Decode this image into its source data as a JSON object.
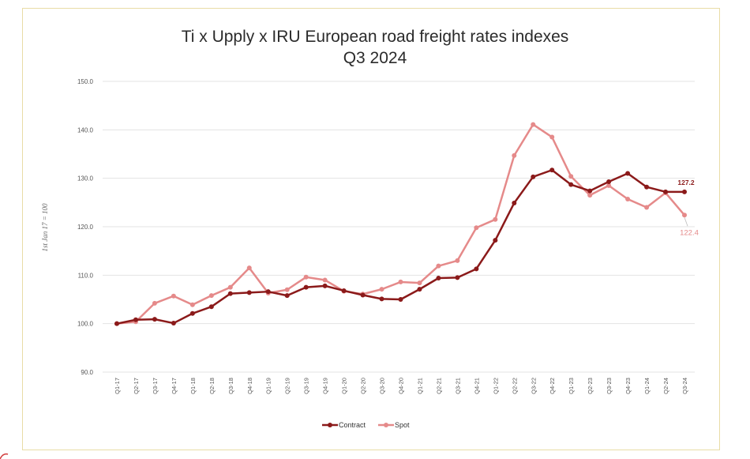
{
  "title_line1": "Ti x Upply x IRU European road freight rates indexes",
  "title_line2": "Q3 2024",
  "colors": {
    "contract": "#8b1a1a",
    "spot": "#e58a8a",
    "grid": "#e3e3e3",
    "frame": "#e9dca6"
  },
  "chart_data": {
    "type": "line",
    "title": "Ti x Upply x IRU European road freight rates indexes Q3 2024",
    "ylabel": "1st Jan 17 = 100",
    "xlabel": "",
    "ylim": [
      90,
      150
    ],
    "yticks": [
      "90.0",
      "100.0",
      "110.0",
      "120.0",
      "130.0",
      "140.0",
      "150.0"
    ],
    "grid": true,
    "legend_position": "bottom",
    "categories": [
      "Q1-17",
      "Q2-17",
      "Q3-17",
      "Q4-17",
      "Q1-18",
      "Q2-18",
      "Q3-18",
      "Q4-18",
      "Q1-19",
      "Q2-19",
      "Q3-19",
      "Q4-19",
      "Q1-20",
      "Q2-20",
      "Q3-20",
      "Q4-20",
      "Q1-21",
      "Q2-21",
      "Q3-21",
      "Q4-21",
      "Q1-22",
      "Q2-22",
      "Q3-22",
      "Q4-22",
      "Q1-23",
      "Q2-23",
      "Q3-23",
      "Q4-23",
      "Q1-24",
      "Q2-24",
      "Q3-24"
    ],
    "series": [
      {
        "name": "Contract",
        "values": [
          100.0,
          100.8,
          100.9,
          100.1,
          102.1,
          103.5,
          106.2,
          106.4,
          106.6,
          105.8,
          107.5,
          107.8,
          106.8,
          105.9,
          105.1,
          105.0,
          107.1,
          109.4,
          109.5,
          111.3,
          117.2,
          124.9,
          130.3,
          131.7,
          128.7,
          127.4,
          129.3,
          131.0,
          128.2,
          127.2,
          127.2
        ]
      },
      {
        "name": "Spot",
        "values": [
          100.0,
          100.4,
          104.2,
          105.7,
          103.9,
          105.8,
          107.5,
          111.5,
          106.3,
          107.0,
          109.6,
          109.0,
          106.7,
          106.1,
          107.1,
          108.6,
          108.4,
          111.9,
          113.0,
          119.8,
          121.5,
          134.7,
          141.1,
          138.5,
          130.4,
          126.5,
          128.5,
          125.7,
          124.0,
          127.0,
          122.4
        ]
      }
    ],
    "end_labels": {
      "contract": "127.2",
      "spot": "122.4"
    }
  }
}
